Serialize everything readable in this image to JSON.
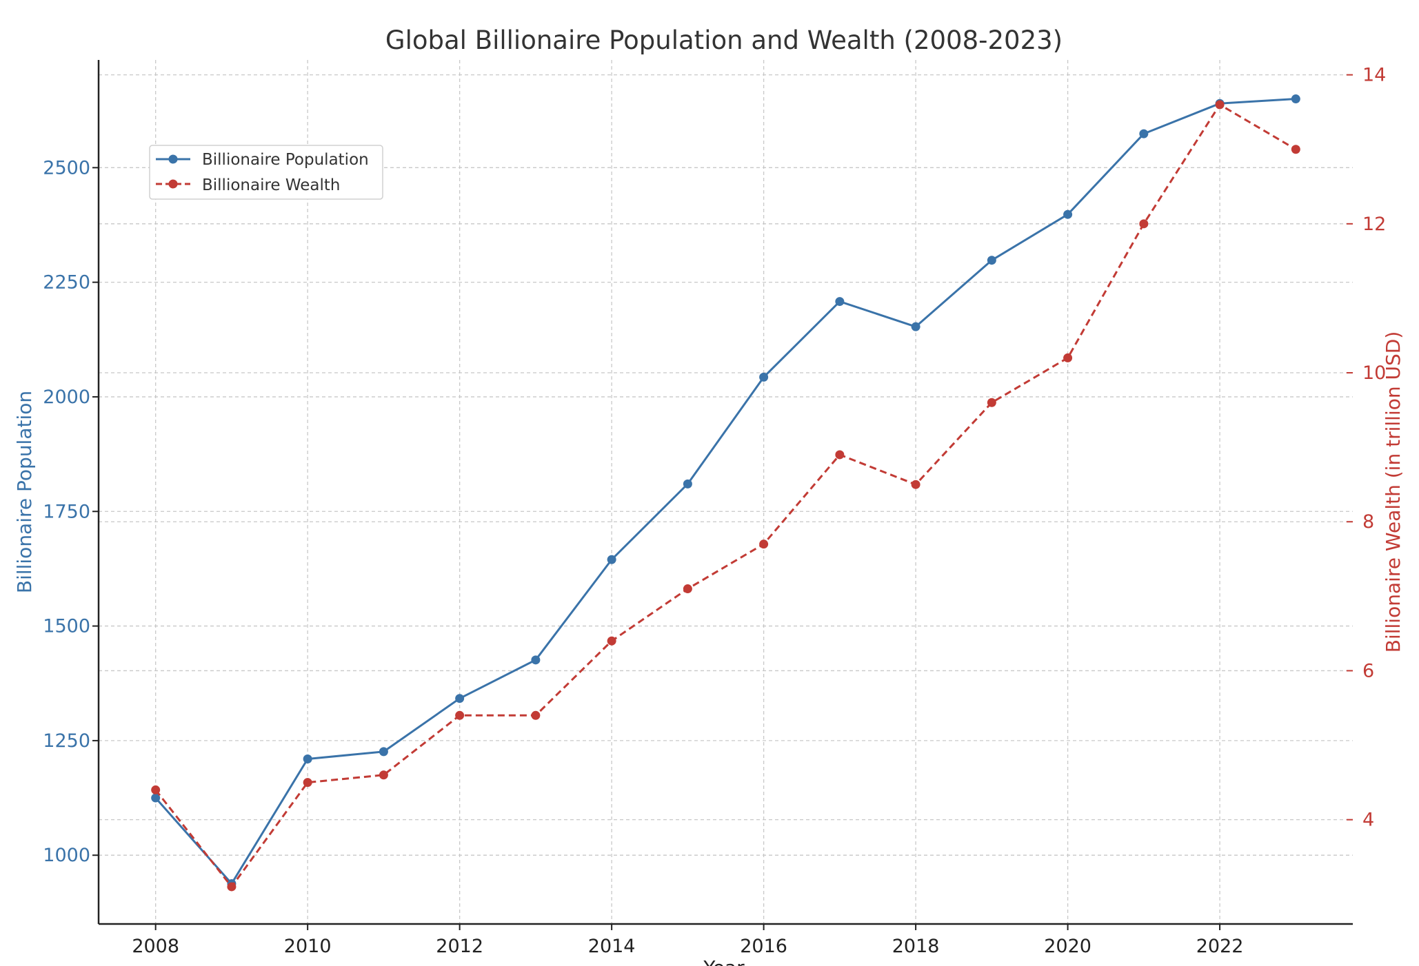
{
  "chart_data": {
    "type": "line",
    "title": "Global Billionaire Population and Wealth (2008-2023)",
    "xlabel": "Year",
    "ylabel_left": "Billionaire Population",
    "ylabel_right": "Billionaire Wealth (in trillion USD)",
    "x": [
      2008,
      2009,
      2010,
      2011,
      2012,
      2013,
      2014,
      2015,
      2016,
      2017,
      2018,
      2019,
      2020,
      2021,
      2022,
      2023
    ],
    "xlim": [
      2007.25,
      2023.75
    ],
    "x_ticks": [
      2008,
      2010,
      2012,
      2014,
      2016,
      2018,
      2020,
      2022
    ],
    "ylim_left": [
      850,
      2735
    ],
    "left_ticks": [
      1000,
      1250,
      1500,
      1750,
      2000,
      2250,
      2500
    ],
    "ylim_right": [
      2.6,
      14.2
    ],
    "right_ticks": [
      4,
      6,
      8,
      10,
      12,
      14
    ],
    "grid": true,
    "legend_position": "upper-left",
    "series": [
      {
        "name": "Billionaire Population",
        "axis": "left",
        "color": "#3a73a9",
        "style": "solid",
        "values": [
          1125,
          938,
          1210,
          1226,
          1342,
          1426,
          1645,
          1810,
          2043,
          2208,
          2153,
          2298,
          2398,
          2574,
          2640,
          2650
        ]
      },
      {
        "name": "Billionaire Wealth",
        "axis": "right",
        "color": "#c23b35",
        "style": "dashed",
        "values": [
          4.4,
          3.1,
          4.5,
          4.6,
          5.4,
          5.4,
          6.4,
          7.1,
          7.7,
          8.9,
          8.5,
          9.6,
          10.2,
          12.0,
          13.6,
          13.0
        ]
      }
    ]
  }
}
